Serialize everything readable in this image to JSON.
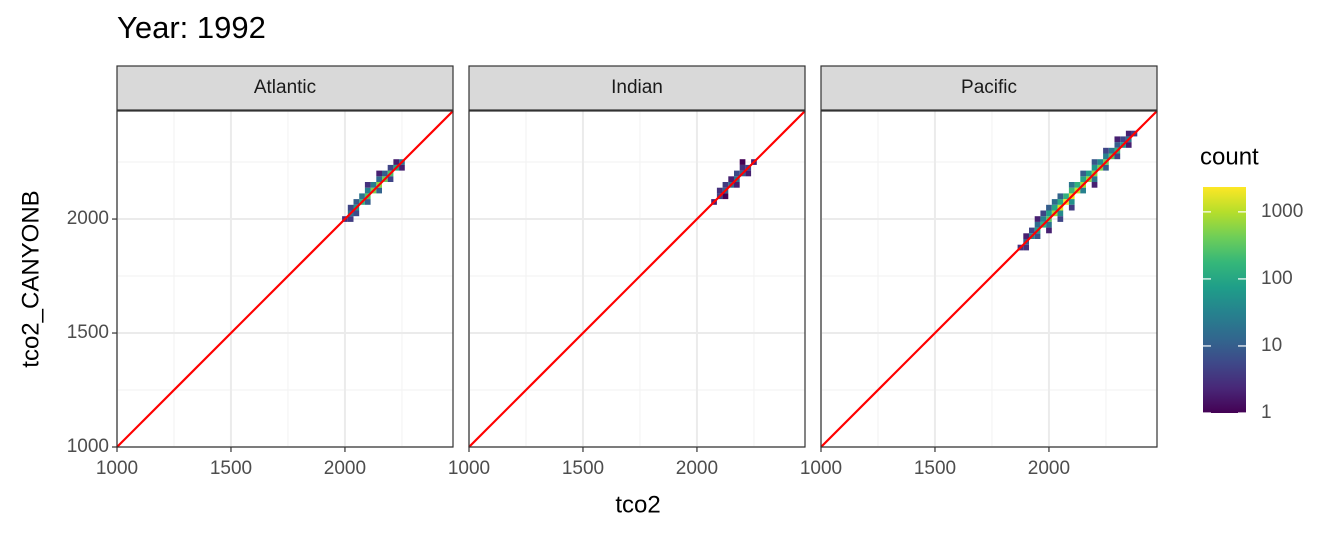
{
  "chart_data": {
    "type": "bin2d",
    "title": "Year: 1992",
    "x_label": "tco2",
    "y_label": "tco2_CANYONB",
    "xlim": [
      1000,
      2474
    ],
    "ylim": [
      1000,
      2474
    ],
    "xticks": [
      1000,
      1500,
      2000
    ],
    "yticks": [
      1000,
      1500,
      2000
    ],
    "minor_ticks": [
      1250,
      1750,
      2250
    ],
    "grid": true,
    "binwidth": 25,
    "reference_line": {
      "slope": 1,
      "intercept": 0,
      "color": "#ff0000"
    },
    "legend": {
      "title": "count",
      "scale": "log",
      "limits": [
        1,
        2350
      ],
      "ticks": [
        1,
        10,
        100,
        1000
      ],
      "position": "right",
      "colors": [
        "#440154",
        "#482878",
        "#3e4989",
        "#31688e",
        "#26828e",
        "#1f9e89",
        "#35b779",
        "#6ece58",
        "#b5de2b",
        "#fde725"
      ]
    },
    "facets": [
      {
        "name": "Atlantic",
        "cells": [
          [
            2000,
            2000,
            3
          ],
          [
            2025,
            2025,
            20
          ],
          [
            2050,
            2050,
            60
          ],
          [
            2075,
            2075,
            150
          ],
          [
            2100,
            2100,
            300
          ],
          [
            2125,
            2125,
            500
          ],
          [
            2150,
            2150,
            600
          ],
          [
            2175,
            2175,
            400
          ],
          [
            2200,
            2200,
            250
          ],
          [
            2225,
            2225,
            100
          ],
          [
            2250,
            2250,
            20
          ],
          [
            2025,
            2050,
            5
          ],
          [
            2050,
            2075,
            10
          ],
          [
            2075,
            2100,
            20
          ],
          [
            2100,
            2125,
            30
          ],
          [
            2125,
            2150,
            25
          ],
          [
            2150,
            2175,
            15
          ],
          [
            2175,
            2200,
            10
          ],
          [
            2200,
            2225,
            5
          ],
          [
            2225,
            2250,
            2
          ],
          [
            2100,
            2150,
            3
          ],
          [
            2150,
            2200,
            2
          ],
          [
            2025,
            2000,
            4
          ],
          [
            2050,
            2025,
            6
          ],
          [
            2100,
            2075,
            10
          ],
          [
            2150,
            2125,
            12
          ],
          [
            2200,
            2175,
            5
          ],
          [
            2250,
            2225,
            2
          ]
        ]
      },
      {
        "name": "Indian",
        "cells": [
          [
            2075,
            2075,
            2
          ],
          [
            2100,
            2100,
            5
          ],
          [
            2125,
            2125,
            10
          ],
          [
            2150,
            2150,
            15
          ],
          [
            2175,
            2175,
            20
          ],
          [
            2200,
            2200,
            12
          ],
          [
            2225,
            2225,
            5
          ],
          [
            2250,
            2250,
            2
          ],
          [
            2100,
            2125,
            3
          ],
          [
            2125,
            2150,
            4
          ],
          [
            2150,
            2175,
            2
          ],
          [
            2175,
            2200,
            6
          ],
          [
            2200,
            2225,
            3
          ],
          [
            2175,
            2150,
            2
          ],
          [
            2225,
            2200,
            2
          ],
          [
            2125,
            2100,
            1
          ],
          [
            2200,
            2250,
            1
          ]
        ]
      },
      {
        "name": "Pacific",
        "cells": [
          [
            1875,
            1875,
            3
          ],
          [
            1900,
            1900,
            10
          ],
          [
            1925,
            1925,
            40
          ],
          [
            1950,
            1950,
            80
          ],
          [
            1975,
            1975,
            150
          ],
          [
            2000,
            2000,
            300
          ],
          [
            2025,
            2025,
            800
          ],
          [
            2050,
            2050,
            1500
          ],
          [
            2075,
            2075,
            2000
          ],
          [
            2100,
            2100,
            1800
          ],
          [
            2125,
            2125,
            1200
          ],
          [
            2150,
            2150,
            900
          ],
          [
            2175,
            2175,
            700
          ],
          [
            2200,
            2200,
            600
          ],
          [
            2225,
            2225,
            500
          ],
          [
            2250,
            2250,
            400
          ],
          [
            2275,
            2275,
            300
          ],
          [
            2300,
            2300,
            150
          ],
          [
            2325,
            2325,
            60
          ],
          [
            2350,
            2350,
            20
          ],
          [
            2375,
            2375,
            4
          ],
          [
            1900,
            1925,
            2
          ],
          [
            1925,
            1950,
            5
          ],
          [
            1950,
            1975,
            15
          ],
          [
            1975,
            2000,
            30
          ],
          [
            2000,
            2025,
            80
          ],
          [
            2025,
            2050,
            100
          ],
          [
            2050,
            2075,
            120
          ],
          [
            2075,
            2100,
            150
          ],
          [
            2100,
            2125,
            200
          ],
          [
            2125,
            2150,
            150
          ],
          [
            2150,
            2175,
            100
          ],
          [
            2175,
            2200,
            80
          ],
          [
            2200,
            2225,
            60
          ],
          [
            2225,
            2250,
            40
          ],
          [
            2250,
            2275,
            30
          ],
          [
            2275,
            2300,
            20
          ],
          [
            2300,
            2325,
            10
          ],
          [
            2325,
            2350,
            5
          ],
          [
            2350,
            2375,
            2
          ],
          [
            1950,
            2000,
            2
          ],
          [
            1975,
            2025,
            5
          ],
          [
            2000,
            2050,
            10
          ],
          [
            2025,
            2075,
            15
          ],
          [
            2050,
            2100,
            12
          ],
          [
            2100,
            2150,
            20
          ],
          [
            2150,
            2200,
            10
          ],
          [
            2200,
            2250,
            8
          ],
          [
            2250,
            2300,
            5
          ],
          [
            2300,
            2350,
            2
          ],
          [
            1900,
            1875,
            3
          ],
          [
            1950,
            1925,
            8
          ],
          [
            2000,
            1975,
            20
          ],
          [
            2050,
            2025,
            40
          ],
          [
            2100,
            2075,
            50
          ],
          [
            2150,
            2125,
            30
          ],
          [
            2200,
            2175,
            20
          ],
          [
            2250,
            2225,
            10
          ],
          [
            2300,
            2275,
            5
          ],
          [
            2350,
            2325,
            2
          ],
          [
            2000,
            1950,
            2
          ],
          [
            2050,
            2000,
            5
          ],
          [
            2100,
            2050,
            4
          ],
          [
            2200,
            2150,
            2
          ]
        ]
      }
    ]
  }
}
